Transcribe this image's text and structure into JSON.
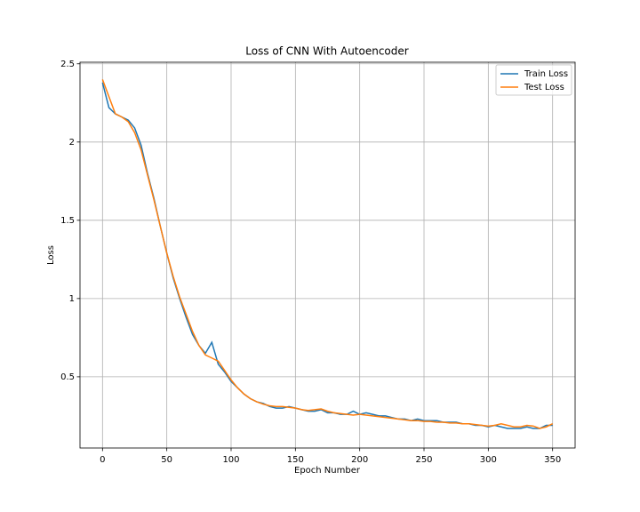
{
  "chart_data": {
    "type": "line",
    "title": "Loss of CNN With Autoencoder",
    "x_label": "Epoch Number",
    "y_label": "Loss",
    "x": [
      0,
      5,
      10,
      15,
      20,
      25,
      30,
      35,
      40,
      45,
      50,
      55,
      60,
      65,
      70,
      75,
      80,
      85,
      90,
      95,
      100,
      105,
      110,
      115,
      120,
      125,
      130,
      135,
      140,
      145,
      150,
      155,
      160,
      165,
      170,
      175,
      180,
      185,
      190,
      195,
      200,
      205,
      210,
      215,
      220,
      225,
      230,
      235,
      240,
      245,
      250,
      255,
      260,
      265,
      270,
      275,
      280,
      285,
      290,
      295,
      300,
      305,
      310,
      315,
      320,
      325,
      330,
      335,
      340,
      345,
      350
    ],
    "series": [
      {
        "name": "Train Loss",
        "color": "#1f77b4",
        "values": [
          2.38,
          2.22,
          2.18,
          2.16,
          2.14,
          2.09,
          1.98,
          1.8,
          1.64,
          1.46,
          1.29,
          1.13,
          1.0,
          0.88,
          0.77,
          0.7,
          0.65,
          0.72,
          0.58,
          0.53,
          0.47,
          0.43,
          0.39,
          0.36,
          0.34,
          0.33,
          0.31,
          0.3,
          0.3,
          0.31,
          0.3,
          0.29,
          0.28,
          0.28,
          0.29,
          0.27,
          0.27,
          0.26,
          0.26,
          0.28,
          0.26,
          0.27,
          0.26,
          0.25,
          0.25,
          0.24,
          0.23,
          0.23,
          0.22,
          0.23,
          0.22,
          0.22,
          0.22,
          0.21,
          0.21,
          0.21,
          0.2,
          0.2,
          0.19,
          0.19,
          0.18,
          0.19,
          0.18,
          0.17,
          0.17,
          0.17,
          0.18,
          0.17,
          0.17,
          0.19,
          0.19
        ]
      },
      {
        "name": "Test Loss",
        "color": "#ff7f0e",
        "values": [
          2.4,
          2.29,
          2.18,
          2.16,
          2.13,
          2.06,
          1.95,
          1.79,
          1.63,
          1.46,
          1.29,
          1.14,
          1.01,
          0.9,
          0.79,
          0.7,
          0.64,
          0.62,
          0.6,
          0.54,
          0.48,
          0.43,
          0.39,
          0.36,
          0.34,
          0.325,
          0.315,
          0.31,
          0.31,
          0.305,
          0.3,
          0.29,
          0.285,
          0.29,
          0.295,
          0.28,
          0.27,
          0.265,
          0.26,
          0.255,
          0.26,
          0.255,
          0.25,
          0.245,
          0.24,
          0.235,
          0.23,
          0.225,
          0.22,
          0.22,
          0.215,
          0.215,
          0.21,
          0.21,
          0.205,
          0.205,
          0.2,
          0.2,
          0.195,
          0.19,
          0.185,
          0.19,
          0.2,
          0.19,
          0.18,
          0.18,
          0.19,
          0.185,
          0.17,
          0.18,
          0.2
        ]
      }
    ],
    "xlim": [
      -17.5,
      367.5
    ],
    "ylim": [
      0.045,
      2.51
    ],
    "xticks": [
      0,
      50,
      100,
      150,
      200,
      250,
      300,
      350
    ],
    "yticks": [
      0.5,
      1.0,
      1.5,
      2.0,
      2.5
    ],
    "grid": true,
    "legend": "upper right"
  }
}
